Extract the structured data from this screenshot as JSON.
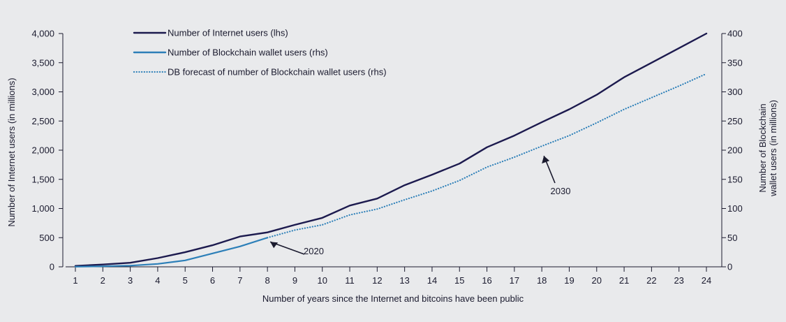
{
  "chart_data": {
    "type": "line",
    "title": "",
    "xlabel": "Number of years since the Internet and bitcoins have been public",
    "ylabel_left": "Number of Internet users (in millions)",
    "ylabel_right_lines": [
      "Number of Blockchain",
      "wallet users (in millions)"
    ],
    "xlim": [
      1,
      24
    ],
    "ylim_left": [
      0,
      4000
    ],
    "ylim_right": [
      0,
      400
    ],
    "x_ticks": [
      1,
      2,
      3,
      4,
      5,
      6,
      7,
      8,
      9,
      10,
      11,
      12,
      13,
      14,
      15,
      16,
      17,
      18,
      19,
      20,
      21,
      22,
      23,
      24
    ],
    "left_ticks": [
      {
        "value": 0,
        "label": "0"
      },
      {
        "value": 500,
        "label": "500"
      },
      {
        "value": 1000,
        "label": "1,000"
      },
      {
        "value": 1500,
        "label": "1,500"
      },
      {
        "value": 2000,
        "label": "2,000"
      },
      {
        "value": 2500,
        "label": "2,500"
      },
      {
        "value": 3000,
        "label": "3,000"
      },
      {
        "value": 3500,
        "label": "3,500"
      },
      {
        "value": 4000,
        "label": "4,000"
      }
    ],
    "right_ticks": [
      {
        "value": 0,
        "label": "0"
      },
      {
        "value": 50,
        "label": "50"
      },
      {
        "value": 100,
        "label": "100"
      },
      {
        "value": 150,
        "label": "150"
      },
      {
        "value": 200,
        "label": "200"
      },
      {
        "value": 250,
        "label": "250"
      },
      {
        "value": 300,
        "label": "300"
      },
      {
        "value": 350,
        "label": "350"
      },
      {
        "value": 400,
        "label": "400"
      }
    ],
    "series": [
      {
        "name": "Number of Internet users (lhs)",
        "axis": "left",
        "style": "solid",
        "color": "#1c1a4e",
        "x": [
          1,
          2,
          3,
          4,
          5,
          6,
          7,
          8,
          9,
          10,
          11,
          12,
          13,
          14,
          15,
          16,
          17,
          18,
          19,
          20,
          21,
          22,
          23,
          24
        ],
        "values": [
          16,
          40,
          70,
          150,
          250,
          370,
          520,
          590,
          720,
          840,
          1050,
          1170,
          1400,
          1580,
          1770,
          2050,
          2250,
          2480,
          2700,
          2950,
          3250,
          3500,
          3750,
          4000
        ]
      },
      {
        "name": "Number of Blockchain wallet users (rhs)",
        "axis": "right",
        "style": "solid",
        "color": "#2c7fb8",
        "x": [
          1,
          2,
          3,
          4,
          5,
          6,
          7,
          8
        ],
        "values": [
          0.2,
          1,
          2,
          5,
          11,
          23,
          35,
          50
        ]
      },
      {
        "name": "DB forecast of number of Blockchain wallet users (rhs)",
        "axis": "right",
        "style": "dotted",
        "color": "#2c7fb8",
        "x": [
          8,
          9,
          10,
          11,
          12,
          13,
          14,
          15,
          16,
          17,
          18,
          19,
          20,
          21,
          22,
          23,
          24
        ],
        "values": [
          50,
          63,
          72,
          89,
          99,
          115,
          130,
          148,
          171,
          188,
          207,
          225,
          247,
          270,
          290,
          310,
          331
        ]
      }
    ],
    "annotations": [
      {
        "text": "2020",
        "x": 8,
        "y": 50,
        "axis": "right"
      },
      {
        "text": "2030",
        "x": 18,
        "y": 207,
        "axis": "right"
      }
    ],
    "legend_position": "top-left"
  }
}
